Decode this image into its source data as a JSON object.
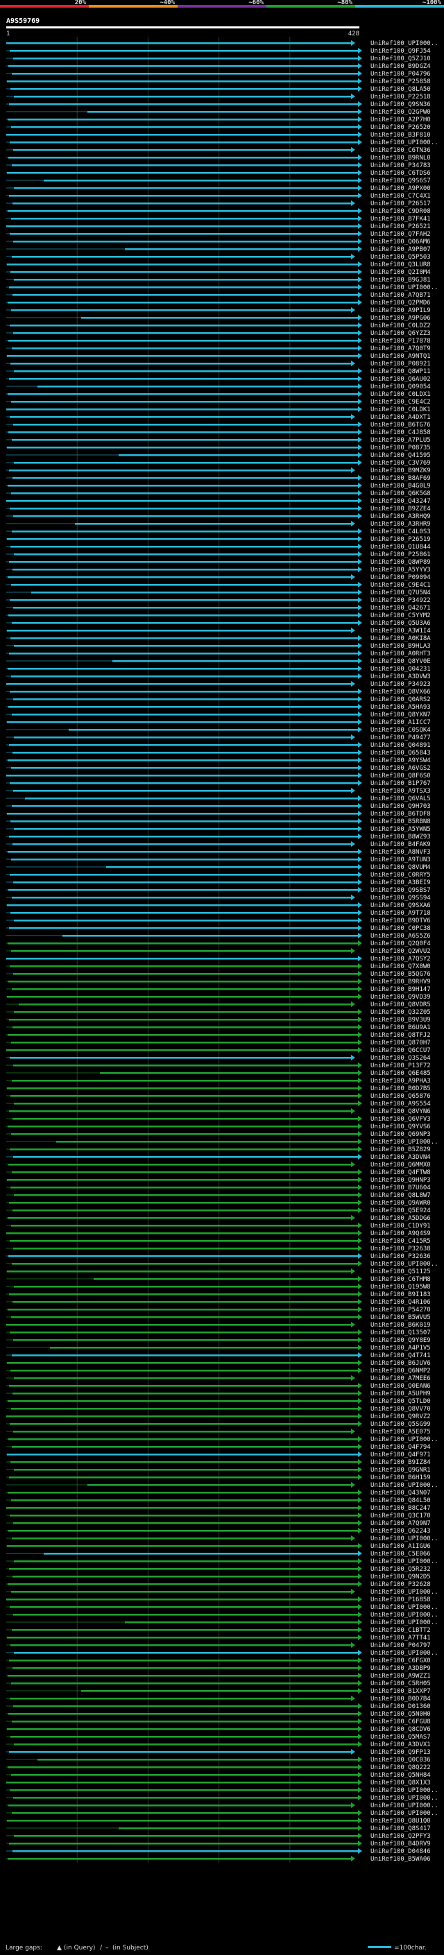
{
  "chart_data": {
    "type": "alignment-overview",
    "query_id": "A9S59769",
    "query_start": "1",
    "query_end": "428",
    "identity_scale": [
      {
        "label": "20%",
        "color": "#e8202a"
      },
      {
        "label": "~40%",
        "color": "#f08a1c"
      },
      {
        "label": "~60%",
        "color": "#7a2fa0"
      },
      {
        "label": "~80%",
        "color": "#20a030"
      },
      {
        "label": "~100%",
        "color": "#28b8d8"
      }
    ],
    "hit_labels": [
      "UniRef100_UPI000..",
      "UniRef100_Q9FJ54",
      "UniRef100_Q5ZJ10",
      "UniRef100_B9DGZ4",
      "UniRef100_P04796",
      "UniRef100_P25858",
      "UniRef100_Q8LA50",
      "UniRef100_P22518",
      "UniRef100_Q9SN36",
      "UniRef100_Q2GPW0",
      "UniRef100_A2P7H0",
      "UniRef100_P26520",
      "UniRef100_B3F810",
      "UniRef100_UPI000..",
      "UniRef100_C6TN36",
      "UniRef100_B9RNL0",
      "UniRef100_P34783",
      "UniRef100_C6TDS6",
      "UniRef100_Q9S6S7",
      "UniRef100_A9PX00",
      "UniRef100_C7C4X1",
      "UniRef100_P26517",
      "UniRef100_C9DR08",
      "UniRef100_B7FK41",
      "UniRef100_P26521",
      "UniRef100_Q7FAH2",
      "UniRef100_Q06AM6",
      "UniRef100_A9PB07",
      "UniRef100_Q5P503",
      "UniRef100_Q3LUR8",
      "UniRef100_Q2I0M4",
      "UniRef100_B9GJ81",
      "UniRef100_UPI000..",
      "UniRef100_A7QB71",
      "UniRef100_Q2PMD6",
      "UniRef100_A9PIL9",
      "UniRef100_A9PG06",
      "UniRef100_C0LDZ2",
      "UniRef100_Q6YZZ3",
      "UniRef100_P17878",
      "UniRef100_A7Q0T9",
      "UniRef100_A9NTQ1",
      "UniRef100_P08921",
      "UniRef100_Q8WP11",
      "UniRef100_Q6AU02",
      "UniRef100_Q09054",
      "UniRef100_C0LDX1",
      "UniRef100_C9E4C2",
      "UniRef100_C0LDK1",
      "UniRef100_A4DXT1",
      "UniRef100_B6TG76",
      "UniRef100_C4J858",
      "UniRef100_A7PLU5",
      "UniRef100_P08735",
      "UniRef100_Q41595",
      "UniRef100_C3V769",
      "UniRef100_B9MZK9",
      "UniRef100_B8AF69",
      "UniRef100_B4G0L9",
      "UniRef100_Q6K5G8",
      "UniRef100_Q43247",
      "UniRef100_B9ZZE4",
      "UniRef100_A3RHQ9",
      "UniRef100_A3RHR9",
      "UniRef100_C4L0S3",
      "UniRef100_P26519",
      "UniRef100_Q1U844",
      "UniRef100_P25861",
      "UniRef100_Q8WP89",
      "UniRef100_A5YYV3",
      "UniRef100_P09094",
      "UniRef100_C9E4C1",
      "UniRef100_Q7U5N4",
      "UniRef100_P34922",
      "UniRef100_Q42671",
      "UniRef100_C5YYM2",
      "UniRef100_Q5U3A6",
      "UniRef100_A3W1I4",
      "UniRef100_A0KI8A",
      "UniRef100_B9HLA3",
      "UniRef100_A0RHT3",
      "UniRef100_Q8YV0E",
      "UniRef100_Q04231",
      "UniRef100_A3DVW3",
      "UniRef100_P34923",
      "UniRef100_Q8VX66",
      "UniRef100_Q0ARS2",
      "UniRef100_A5HA93",
      "UniRef100_Q8YXN7",
      "UniRef100_A1ICC7",
      "UniRef100_C0SQK4",
      "UniRef100_P49477",
      "UniRef100_Q04891",
      "UniRef100_Q65843",
      "UniRef100_A9YSW4",
      "UniRef100_A6VGS2",
      "UniRef100_Q8F6S0",
      "UniRef100_B1P767",
      "UniRef100_A9TSX3",
      "UniRef100_Q6VAL5",
      "UniRef100_Q9H703",
      "UniRef100_B6TDF8",
      "UniRef100_B5RBN8",
      "UniRef100_A5YWN5",
      "UniRef100_B8WZ93",
      "UniRef100_B4FAK9",
      "UniRef100_A8NVF3",
      "UniRef100_A9TUN3",
      "UniRef100_Q8VUM4",
      "UniRef100_C0RRY5",
      "UniRef100_A3BEI9",
      "UniRef100_Q9SBS7",
      "UniRef100_Q9SS94",
      "UniRef100_Q9SXA6",
      "UniRef100_A9T718",
      "UniRef100_B9DTV6",
      "UniRef100_C0PC38",
      "UniRef100_A6S5Z6",
      "UniRef100_Q2Q0F4",
      "UniRef100_Q2WVU2",
      "UniRef100_A7QSY2",
      "UniRef100_Q7X8W0",
      "UniRef100_B5QG76",
      "UniRef100_B9RHV9",
      "UniRef100_B9H147",
      "UniRef100_Q9VD39",
      "UniRef100_Q8VDR5",
      "UniRef100_Q32Z05",
      "UniRef100_B9V3U9",
      "UniRef100_B6U9A1",
      "UniRef100_Q8TFJ2",
      "UniRef100_Q870H7",
      "UniRef100_Q6CCU7",
      "UniRef100_Q3S264",
      "UniRef100_P13F72",
      "UniRef100_Q6E485",
      "UniRef100_A9PHA3",
      "UniRef100_B0D7B5",
      "UniRef100_Q65876",
      "UniRef100_A9S554",
      "UniRef100_Q8VYN6",
      "UniRef100_Q6VFV3",
      "UniRef100_Q9YVS6",
      "UniRef100_Q69NP3",
      "UniRef100_UPI000..",
      "UniRef100_B5Z829",
      "UniRef100_A3DVN4",
      "UniRef100_Q6MMX0",
      "UniRef100_Q4FTW8",
      "UniRef100_Q9HNP3",
      "UniRef100_B7U604",
      "UniRef100_Q8L8W7",
      "UniRef100_Q9AWR0",
      "UniRef100_Q5E924",
      "UniRef100_A5DDG6",
      "UniRef100_C1DY91",
      "UniRef100_A9Q4S9",
      "UniRef100_C415R5",
      "UniRef100_P32638",
      "UniRef100_P32636",
      "UniRef100_UPI000..",
      "UniRef100_Q51125",
      "UniRef100_C6THM8",
      "UniRef100_Q195W8",
      "UniRef100_B9I183",
      "UniRef100_Q4R106",
      "UniRef100_P54270",
      "UniRef100_B5WVU5",
      "UniRef100_B6K019",
      "UniRef100_Q13507",
      "UniRef100_Q9Y8E9",
      "UniRef100_A4P1V5",
      "UniRef100_Q4T741",
      "UniRef100_B6JUV6",
      "UniRef100_Q6NMP2",
      "UniRef100_A7MEE6",
      "UniRef100_Q0EAN6",
      "UniRef100_A5UPH9",
      "UniRef100_Q5TLD0",
      "UniRef100_Q8VV70",
      "UniRef100_Q9RVZ2",
      "UniRef100_Q5SG99",
      "UniRef100_A5E075",
      "UniRef100_UPI000..",
      "UniRef100_Q4F794",
      "UniRef100_Q4F971",
      "UniRef100_B9IZ84",
      "UniRef100_Q9GNR1",
      "UniRef100_B6H159",
      "UniRef100_UPI000..",
      "UniRef100_Q43N07",
      "UniRef100_Q84L50",
      "UniRef100_B8C247",
      "UniRef100_Q3C170",
      "UniRef100_A7Q9N7",
      "UniRef100_Q62243",
      "UniRef100_UPI000..",
      "UniRef100_A1IGU6",
      "UniRef100_C5E066",
      "UniRef100_UPI000..",
      "UniRef100_Q5R232",
      "UniRef100_Q9N2D5",
      "UniRef100_P32628",
      "UniRef100_UPI000..",
      "UniRef100_P16858",
      "UniRef100_UPI000..",
      "UniRef100_UPI000..",
      "UniRef100_UPI000..",
      "UniRef100_C1BTT2",
      "UniRef100_A7TT41",
      "UniRef100_P04797",
      "UniRef100_UPI000..",
      "UniRef100_C6FGX0",
      "UniRef100_A3DBP9",
      "UniRef100_A9WZZ1",
      "UniRef100_C5RH05",
      "UniRef100_B1XXP7",
      "UniRef100_B0D7B4",
      "UniRef100_D01360",
      "UniRef100_Q5N0H0",
      "UniRef100_C6FGU8",
      "UniRef100_Q8CDV6",
      "UniRef100_Q5MAS7",
      "UniRef100_A3DVX1",
      "UniRef100_Q9FP13",
      "UniRef100_Q0C036",
      "UniRef100_Q8Q222",
      "UniRef100_Q5NH84",
      "UniRef100_Q8X1X3",
      "UniRef100_UPI000..",
      "UniRef100_UPI000..",
      "UniRef100_UPI000..",
      "UniRef100_UPI000..",
      "UniRef100_Q8U1Q0",
      "UniRef100_Q8S417",
      "UniRef100_Q2PFY3",
      "UniRef100_B4DRV9",
      "UniRef100_D04846",
      "UniRef100_B5WA06"
    ],
    "footer": {
      "large_gaps_label": "Large gaps:",
      "in_query_label": "(in Query)",
      "in_subject_label": "(in Subject)",
      "scale_label": "=100char."
    }
  }
}
